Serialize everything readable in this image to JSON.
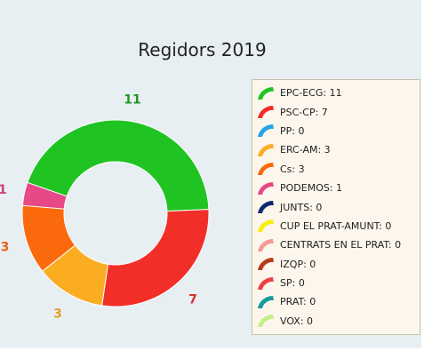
{
  "chart_data": {
    "type": "pie",
    "variant": "donut",
    "title": "Regidors 2019",
    "legend_position": "right",
    "slices": [
      {
        "name": "EPC-ECG",
        "value": 11,
        "color": "#1fc423",
        "label": "11"
      },
      {
        "name": "PSC-CP",
        "value": 7,
        "color": "#f12f28",
        "label": "7"
      },
      {
        "name": "PP",
        "value": 0,
        "color": "#21a5e6",
        "label": ""
      },
      {
        "name": "ERC-AM",
        "value": 3,
        "color": "#fbad22",
        "label": "3"
      },
      {
        "name": "Cs",
        "value": 3,
        "color": "#fa6a0c",
        "label": "3"
      },
      {
        "name": "PODEMOS",
        "value": 1,
        "color": "#e74888",
        "label": "1"
      },
      {
        "name": "JUNTS",
        "value": 0,
        "color": "#0e2971",
        "label": ""
      },
      {
        "name": "CUP EL PRAT-AMUNT",
        "value": 0,
        "color": "#f6ee10",
        "label": ""
      },
      {
        "name": "CENTRATS EN EL PRAT",
        "value": 0,
        "color": "#f29c97",
        "label": ""
      },
      {
        "name": "IZQP",
        "value": 0,
        "color": "#b63c1a",
        "label": ""
      },
      {
        "name": "SP",
        "value": 0,
        "color": "#ef4040",
        "label": ""
      },
      {
        "name": "PRAT",
        "value": 0,
        "color": "#149a98",
        "label": ""
      },
      {
        "name": "VOX",
        "value": 0,
        "color": "#c3f083",
        "label": ""
      }
    ],
    "legend": [
      "EPC-ECG: 11",
      "PSC-CP: 7",
      "PP: 0",
      "ERC-AM: 3",
      "Cs: 3",
      "PODEMOS: 1",
      "JUNTS: 0",
      "CUP EL PRAT-AMUNT: 0",
      "CENTRATS EN EL PRAT: 0",
      "IZQP: 0",
      "SP: 0",
      "PRAT: 0",
      "VOX: 0"
    ],
    "label_colors": {
      "EPC-ECG": "#21962a",
      "PSC-CP": "#d8322c",
      "ERC-AM": "#e89b2b",
      "Cs": "#e46315",
      "PODEMOS": "#c93f7c"
    }
  }
}
